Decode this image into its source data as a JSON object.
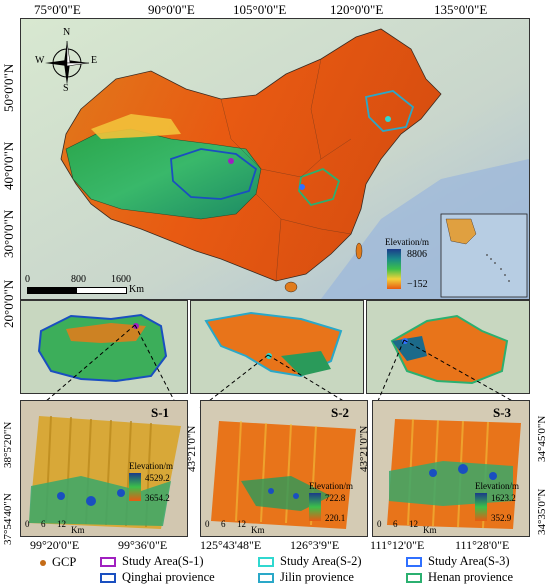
{
  "main_map": {
    "top_lon_labels": [
      "75°0'0\"E",
      "90°0'0\"E",
      "105°0'0\"E",
      "120°0'0\"E",
      "135°0'0\"E"
    ],
    "left_lat_labels": [
      "50°0'0\"N",
      "40°0'0\"N",
      "30°0'0\"N",
      "20°0'0\"N"
    ],
    "compass": {
      "n": "N",
      "s": "S",
      "e": "E",
      "w": "W"
    },
    "scale": {
      "ticks": [
        "0",
        "800",
        "1600"
      ],
      "unit": "Km"
    },
    "elevation_legend": {
      "title": "Elevation/m",
      "max": "8806",
      "min": "−152"
    }
  },
  "inset_s1": {
    "title": "S-1",
    "elevation_title": "Elevation/m",
    "max": "4529.2",
    "min": "3654.2",
    "scale_ticks": [
      "0",
      "6",
      "12"
    ],
    "scale_unit": "Km",
    "lat_labels": [
      "38°5'20\"N",
      "37°54'40\"N"
    ],
    "lon_labels": [
      "99°20'0\"E",
      "99°36'0\"E"
    ]
  },
  "inset_s2": {
    "title": "S-2",
    "elevation_title": "Elevation/m",
    "max": "722.8",
    "min": "220.1",
    "scale_ticks": [
      "0",
      "6",
      "12"
    ],
    "scale_unit": "Km",
    "lat_labels": [
      "43°21'0\"N"
    ],
    "lon_labels": [
      "125°43'48\"E",
      "126°3'9\"E"
    ]
  },
  "inset_s3": {
    "title": "S-3",
    "elevation_title": "Elevation/m",
    "max": "1623.2",
    "min": "352.9",
    "scale_ticks": [
      "0",
      "6",
      "12"
    ],
    "scale_unit": "Km",
    "lat_labels": [
      "43°21'0\"N",
      "34°45'0\"N",
      "34°35'0\"N"
    ],
    "lon_labels": [
      "111°12'0\"E",
      "111°28'0\"E"
    ]
  },
  "legend": {
    "gcp": "GCP",
    "study_s1": "Study Area(S-1)",
    "study_s2": "Study Area(S-2)",
    "study_s3": "Study Area(S-3)",
    "qinghai": "Qinghai provience",
    "jilin": "Jilin provience",
    "henan": "Henan provience",
    "colors": {
      "gcp": "#c46b17",
      "s1": "#a020c0",
      "s2": "#30d8d0",
      "s3": "#3070ff",
      "qinghai": "#1a4fc0",
      "jilin": "#2aa8c8",
      "henan": "#2bb070"
    }
  }
}
